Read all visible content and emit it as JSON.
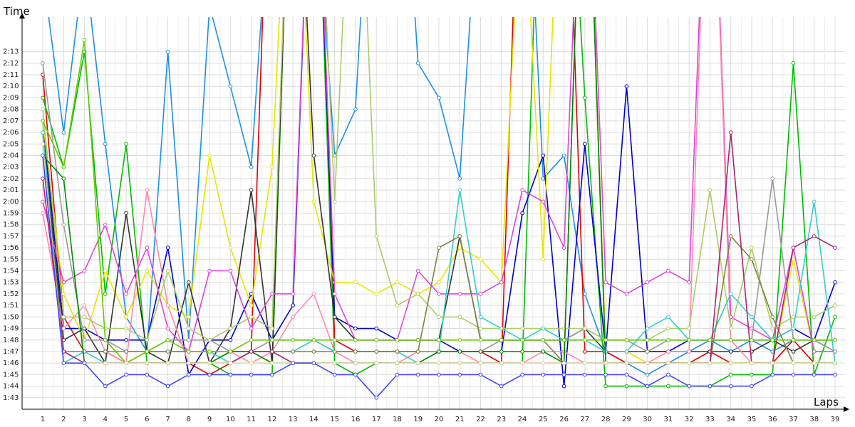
{
  "chart_data": {
    "type": "line",
    "xlabel": "Laps",
    "ylabel": "Time",
    "x": [
      1,
      2,
      3,
      4,
      5,
      6,
      7,
      8,
      9,
      10,
      11,
      12,
      13,
      14,
      15,
      16,
      17,
      18,
      19,
      20,
      21,
      22,
      23,
      24,
      25,
      26,
      27,
      28,
      29,
      30,
      31,
      32,
      33,
      34,
      35,
      36,
      37,
      38,
      39
    ],
    "x_ticks": [
      "1",
      "2",
      "3",
      "4",
      "5",
      "6",
      "7",
      "8",
      "9",
      "10",
      "11",
      "12",
      "13",
      "14",
      "15",
      "16",
      "17",
      "18",
      "19",
      "20",
      "21",
      "22",
      "23",
      "24",
      "25",
      "26",
      "27",
      "28",
      "29",
      "30",
      "31",
      "32",
      "33",
      "34",
      "35",
      "36",
      "37",
      "38",
      "39"
    ],
    "y_ticks": [
      "1:43",
      "1:44",
      "1:45",
      "1:46",
      "1:47",
      "1:48",
      "1:49",
      "1:50",
      "1:51",
      "1:52",
      "1:53",
      "1:54",
      "1:55",
      "1:56",
      "1:57",
      "1:58",
      "1:59",
      "2:00",
      "2:01",
      "2:02",
      "2:03",
      "2:04",
      "2:05",
      "2:06",
      "2:07",
      "2:08",
      "2:09",
      "2:10",
      "2:11",
      "2:12",
      "2:13"
    ],
    "ylim": [
      "1:42",
      "2:16"
    ],
    "grid": true,
    "legend": "none",
    "y_unit_note": "lap times in seconds (103 = 1:43)",
    "series": [
      {
        "color": "#1e90e6",
        "values": [
          140,
          126,
          141,
          125,
          110,
          107,
          133,
          108,
          137,
          130,
          123,
          150,
          160,
          150,
          124,
          128,
          160,
          160,
          132,
          129,
          122,
          150,
          160,
          160,
          122,
          124,
          112,
          107,
          106,
          105,
          106,
          107,
          108,
          107,
          108,
          107,
          108,
          108,
          107
        ]
      },
      {
        "color": "#e00000",
        "values": [
          131,
          110,
          107,
          107,
          106,
          106,
          106,
          106,
          105,
          106,
          107,
          160,
          160,
          160,
          108,
          107,
          107,
          107,
          107,
          107,
          107,
          107,
          106,
          160,
          160,
          160,
          107,
          107,
          106,
          106,
          106,
          106,
          107,
          106,
          106,
          106,
          108,
          106,
          106
        ]
      },
      {
        "color": "#00bb00",
        "values": [
          129,
          123,
          133,
          112,
          125,
          106,
          106,
          106,
          106,
          105,
          105,
          105,
          160,
          160,
          106,
          105,
          106,
          106,
          106,
          106,
          106,
          106,
          106,
          106,
          160,
          160,
          129,
          104,
          104,
          104,
          104,
          104,
          104,
          105,
          105,
          105,
          132,
          105,
          110
        ]
      },
      {
        "color": "#0000cc",
        "values": [
          127,
          109,
          109,
          108,
          108,
          108,
          116,
          105,
          108,
          108,
          112,
          108,
          111,
          160,
          110,
          109,
          109,
          108,
          108,
          108,
          107,
          107,
          107,
          119,
          124,
          104,
          125,
          107,
          130,
          107,
          107,
          108,
          108,
          108,
          108,
          108,
          109,
          108,
          113
        ]
      },
      {
        "color": "#e6e600",
        "values": [
          127,
          112,
          108,
          114,
          110,
          114,
          111,
          110,
          124,
          116,
          111,
          123,
          160,
          120,
          113,
          113,
          112,
          113,
          112,
          113,
          116,
          115,
          113,
          150,
          115,
          160,
          160,
          107,
          107,
          106,
          106,
          106,
          106,
          106,
          106,
          106,
          115,
          107,
          107
        ]
      },
      {
        "color": "#333333",
        "values": [
          126,
          108,
          109,
          106,
          119,
          107,
          106,
          113,
          106,
          109,
          121,
          106,
          160,
          124,
          110,
          108,
          108,
          108,
          108,
          108,
          117,
          108,
          108,
          108,
          108,
          108,
          109,
          107,
          107,
          107,
          107,
          107,
          107,
          107,
          107,
          108,
          107,
          108,
          108
        ]
      },
      {
        "color": "#dd44dd",
        "values": [
          120,
          113,
          114,
          118,
          112,
          116,
          109,
          107,
          114,
          114,
          109,
          112,
          112,
          160,
          112,
          108,
          108,
          108,
          114,
          112,
          112,
          112,
          113,
          121,
          120,
          116,
          160,
          113,
          112,
          113,
          114,
          113,
          160,
          110,
          109,
          108,
          116,
          107,
          107
        ]
      },
      {
        "color": "#ff88aa",
        "values": [
          119,
          109,
          111,
          107,
          106,
          121,
          111,
          106,
          106,
          107,
          106,
          107,
          110,
          112,
          107,
          106,
          106,
          106,
          107,
          107,
          107,
          106,
          106,
          106,
          107,
          107,
          106,
          106,
          106,
          106,
          107,
          107,
          160,
          108,
          106,
          106,
          106,
          106,
          106
        ]
      },
      {
        "color": "#999999",
        "values": [
          132,
          118,
          108,
          108,
          107,
          107,
          108,
          108,
          108,
          107,
          107,
          108,
          108,
          108,
          107,
          107,
          107,
          107,
          107,
          107,
          107,
          107,
          108,
          108,
          108,
          108,
          109,
          108,
          108,
          107,
          108,
          108,
          108,
          108,
          108,
          122,
          108,
          108,
          107
        ]
      },
      {
        "color": "#aacc66",
        "values": [
          128,
          110,
          110,
          109,
          109,
          108,
          114,
          109,
          108,
          109,
          110,
          109,
          160,
          160,
          120,
          160,
          117,
          111,
          112,
          110,
          110,
          109,
          109,
          109,
          109,
          109,
          109,
          108,
          108,
          108,
          109,
          109,
          121,
          109,
          116,
          109,
          110,
          110,
          111
        ]
      },
      {
        "color": "#33cccc",
        "values": [
          126,
          106,
          107,
          106,
          106,
          107,
          107,
          107,
          107,
          106,
          107,
          107,
          107,
          108,
          107,
          107,
          107,
          107,
          106,
          107,
          121,
          110,
          109,
          108,
          109,
          108,
          108,
          107,
          107,
          109,
          110,
          108,
          108,
          112,
          110,
          108,
          109,
          120,
          106
        ]
      },
      {
        "color": "#808040",
        "values": [
          125,
          107,
          107,
          107,
          107,
          107,
          107,
          107,
          107,
          107,
          107,
          107,
          107,
          107,
          107,
          107,
          107,
          107,
          107,
          116,
          117,
          108,
          108,
          108,
          108,
          106,
          160,
          106,
          106,
          106,
          106,
          106,
          106,
          117,
          115,
          110,
          106,
          106,
          106
        ]
      },
      {
        "color": "#008800",
        "values": [
          124,
          122,
          106,
          106,
          106,
          106,
          106,
          106,
          106,
          107,
          107,
          106,
          106,
          106,
          106,
          106,
          106,
          106,
          106,
          107,
          107,
          107,
          107,
          107,
          107,
          106,
          160,
          106,
          106,
          106,
          106,
          106,
          106,
          106,
          106,
          106,
          106,
          106,
          106
        ]
      },
      {
        "color": "#aa2277",
        "values": [
          122,
          107,
          106,
          106,
          106,
          106,
          106,
          106,
          106,
          106,
          107,
          107,
          106,
          106,
          106,
          106,
          106,
          106,
          106,
          106,
          106,
          106,
          106,
          106,
          106,
          106,
          106,
          106,
          106,
          106,
          106,
          106,
          106,
          126,
          106,
          106,
          116,
          117,
          116
        ]
      },
      {
        "color": "#66cc00",
        "values": [
          127,
          123,
          134,
          108,
          106,
          107,
          108,
          107,
          107,
          107,
          108,
          108,
          108,
          108,
          108,
          108,
          108,
          108,
          108,
          108,
          108,
          108,
          108,
          108,
          108,
          108,
          108,
          108,
          108,
          108,
          108,
          108,
          108,
          108,
          108,
          108,
          108,
          108,
          108
        ]
      },
      {
        "color": "#dddd99",
        "values": [
          125,
          106,
          106,
          106,
          106,
          106,
          106,
          106,
          106,
          106,
          106,
          106,
          106,
          106,
          106,
          106,
          106,
          106,
          106,
          106,
          106,
          106,
          106,
          106,
          106,
          106,
          106,
          106,
          106,
          106,
          106,
          106,
          106,
          106,
          106,
          106,
          106,
          106,
          106
        ]
      },
      {
        "color": "#4444ff",
        "values": [
          124,
          106,
          106,
          104,
          105,
          105,
          104,
          105,
          105,
          105,
          105,
          105,
          106,
          106,
          105,
          105,
          103,
          105,
          105,
          105,
          105,
          105,
          104,
          105,
          105,
          105,
          105,
          105,
          105,
          104,
          105,
          104,
          104,
          104,
          104,
          105,
          105,
          105,
          105
        ]
      }
    ]
  }
}
